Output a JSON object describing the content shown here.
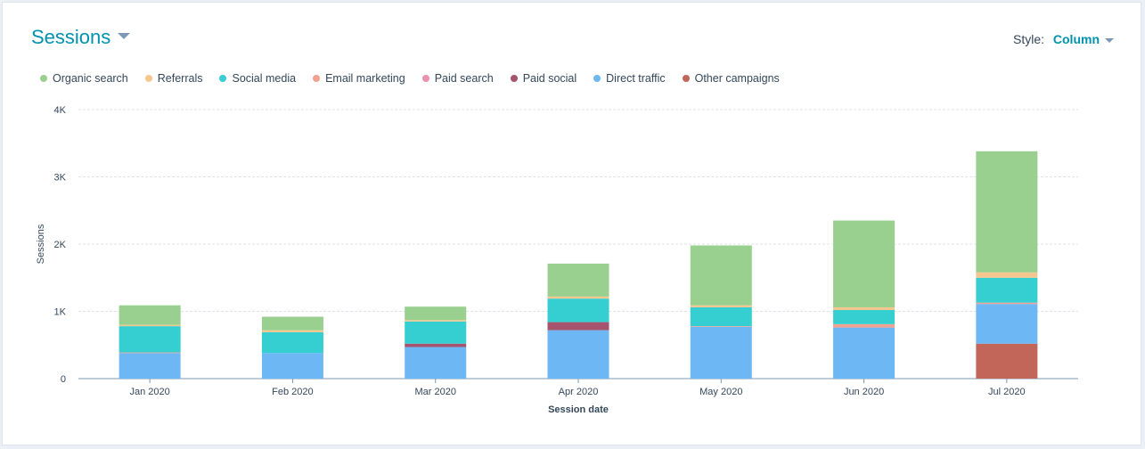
{
  "header": {
    "title": "Sessions",
    "style_label": "Style:",
    "style_value": "Column"
  },
  "chart_data": {
    "type": "bar",
    "stacked": true,
    "categories": [
      "Jan 2020",
      "Feb 2020",
      "Mar 2020",
      "Apr 2020",
      "May 2020",
      "Jun 2020",
      "Jul 2020"
    ],
    "xlabel": "Session date",
    "ylabel": "Sessions",
    "ylim": [
      0,
      4000
    ],
    "yticks": [
      0,
      1000,
      2000,
      3000,
      4000
    ],
    "ytick_labels": [
      "0",
      "1K",
      "2K",
      "3K",
      "4K"
    ],
    "grid": true,
    "legend_position": "top-left",
    "series": [
      {
        "name": "Other campaigns",
        "color": "#c2665a",
        "values": [
          0,
          0,
          0,
          0,
          0,
          0,
          520
        ]
      },
      {
        "name": "Direct traffic",
        "color": "#6eb7f5",
        "values": [
          380,
          380,
          470,
          720,
          770,
          760,
          590
        ]
      },
      {
        "name": "Paid social",
        "color": "#a6536e",
        "values": [
          0,
          0,
          50,
          120,
          0,
          0,
          0
        ]
      },
      {
        "name": "Paid search",
        "color": "#ea90b1",
        "values": [
          0,
          0,
          0,
          0,
          0,
          0,
          0
        ]
      },
      {
        "name": "Email marketing",
        "color": "#f2a08f",
        "values": [
          10,
          0,
          0,
          0,
          10,
          50,
          20
        ]
      },
      {
        "name": "Social media",
        "color": "#35cfd1",
        "values": [
          390,
          310,
          330,
          350,
          280,
          210,
          370
        ]
      },
      {
        "name": "Referrals",
        "color": "#f5c78e",
        "values": [
          20,
          30,
          20,
          30,
          30,
          40,
          80
        ]
      },
      {
        "name": "Organic search",
        "color": "#99cf8f",
        "values": [
          290,
          200,
          200,
          490,
          890,
          1290,
          1800
        ]
      }
    ]
  },
  "legend_order": [
    "Organic search",
    "Referrals",
    "Social media",
    "Email marketing",
    "Paid search",
    "Paid social",
    "Direct traffic",
    "Other campaigns"
  ]
}
